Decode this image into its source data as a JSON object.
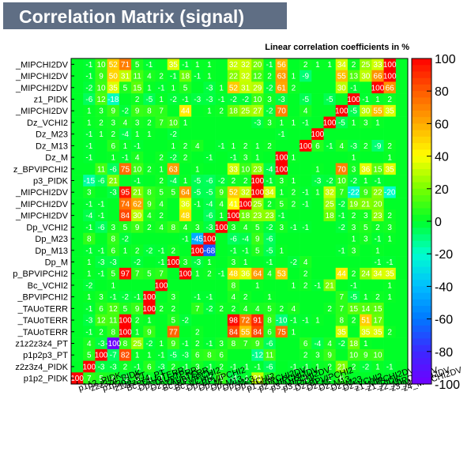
{
  "title": "Correlation Matrix (signal)",
  "chart_data": {
    "type": "heatmap",
    "title": "Linear correlation coefficients in %",
    "zlim": [
      -100,
      100
    ],
    "z_ticks": [
      100,
      80,
      60,
      40,
      20,
      0,
      -20,
      -40,
      -60,
      -80,
      -100
    ],
    "row_labels": [
      "_MIPCHI2DV",
      "_MIPCHI2DV",
      "_MIPCHI2DV",
      "z1_PIDK",
      "_MIPCHI2DV",
      "Dz_VCHI2",
      "Dz_M23",
      "Dz_M13",
      "Dz_M",
      "z_BPVIPCHI2",
      "p3_PIDK",
      "_MIPCHI2DV",
      "_MIPCHI2DV",
      "_MIPCHI2DV",
      "Dp_VCHI2",
      "Dp_M23",
      "Dp_M13",
      "Dp_M",
      "p_BPVIPCHI2",
      "Bc_VCHI2",
      "_BPVIPCHI2",
      "_TAUoTERR",
      "_TAUoTERR",
      "_TAUoTERR",
      "z1z2z3z4_PT",
      "p1p2p3_PT",
      "z2z3z4_PIDK",
      "p1p2_PIDK"
    ],
    "col_labels": [
      "p1p2_PIDK",
      "z2z3z4_PIDK",
      "p1p2p3_PT",
      "z1z2z3z4_PT",
      "Bc_TAUoTERR",
      "Dp_TAUoTERR",
      "Dz_TAUoTERR",
      "Bc_BPVIPCHI2",
      "Bc_VCHI2",
      "Dp_BPVIPCHI2",
      "Dp_M",
      "Dp_M13",
      "Dp_M23",
      "Dp_VCHI2",
      "p1_MIPCHI2DV",
      "p2_MIPCHI2DV",
      "p3_MIPCHI2DV",
      "p3_PIDK",
      "Dz_BPVIPCHI2",
      "Dz_M",
      "Dz_M13",
      "Dz_M23",
      "Dz_VCHI2",
      "z1_MIPCHI2DV",
      "z1_PIDK",
      "z2_MIPCHI2DV",
      "z3_MIPCHI2DV",
      "z4_MIPCHI2DV"
    ],
    "values": [
      [
        0,
        -1,
        10,
        52,
        71,
        5,
        -1,
        0,
        35,
        -1,
        1,
        1,
        0,
        32,
        32,
        20,
        -1,
        56,
        0,
        2,
        1,
        1,
        34,
        2,
        25,
        33,
        100,
        0
      ],
      [
        0,
        -1,
        9,
        50,
        31,
        11,
        4,
        2,
        -1,
        18,
        -1,
        1,
        0,
        22,
        32,
        12,
        2,
        63,
        1,
        -9,
        0,
        0,
        55,
        13,
        30,
        66,
        100,
        0
      ],
      [
        0,
        -2,
        10,
        35,
        5,
        15,
        1,
        -1,
        1,
        5,
        0,
        -3,
        1,
        52,
        31,
        29,
        -2,
        61,
        2,
        0,
        0,
        0,
        30,
        -1,
        0,
        100,
        66,
        0
      ],
      [
        0,
        -6,
        12,
        -18,
        0,
        2,
        -5,
        1,
        -2,
        -1,
        -3,
        -3,
        -1,
        -2,
        -2,
        10,
        3,
        -3,
        0,
        -5,
        0,
        -5,
        0,
        100,
        -1,
        1,
        2,
        0
      ],
      [
        0,
        1,
        3,
        9,
        -2,
        9,
        8,
        7,
        0,
        44,
        0,
        1,
        2,
        18,
        25,
        27,
        -2,
        70,
        0,
        4,
        0,
        0,
        100,
        -5,
        30,
        55,
        35,
        0
      ],
      [
        0,
        1,
        2,
        3,
        4,
        3,
        2,
        7,
        10,
        1,
        0,
        0,
        0,
        0,
        0,
        -3,
        3,
        1,
        1,
        -1,
        0,
        100,
        -5,
        1,
        3,
        1,
        0,
        0
      ],
      [
        0,
        -1,
        1,
        2,
        -4,
        1,
        1,
        0,
        -2,
        0,
        0,
        0,
        0,
        0,
        0,
        0,
        0,
        -1,
        0,
        0,
        100,
        0,
        0,
        0,
        0,
        0,
        0,
        0
      ],
      [
        0,
        -1,
        0,
        6,
        1,
        -1,
        0,
        0,
        1,
        2,
        4,
        0,
        -1,
        1,
        2,
        1,
        2,
        0,
        0,
        100,
        6,
        -1,
        4,
        -3,
        2,
        -9,
        2,
        0
      ],
      [
        0,
        -1,
        0,
        1,
        -1,
        4,
        0,
        2,
        -2,
        2,
        0,
        -1,
        0,
        -1,
        3,
        1,
        0,
        100,
        1,
        0,
        0,
        0,
        0,
        1,
        0,
        0,
        1,
        0
      ],
      [
        0,
        0,
        11,
        -6,
        75,
        10,
        2,
        1,
        63,
        0,
        1,
        0,
        0,
        33,
        10,
        23,
        -4,
        100,
        0,
        0,
        1,
        0,
        70,
        3,
        36,
        15,
        35,
        0
      ],
      [
        0,
        -15,
        -6,
        21,
        0,
        -1,
        0,
        2,
        -4,
        1,
        -5,
        -6,
        -2,
        2,
        2,
        100,
        -1,
        3,
        1,
        0,
        -3,
        -2,
        10,
        -2,
        1,
        -1,
        0,
        0
      ],
      [
        0,
        3,
        0,
        -3,
        95,
        21,
        8,
        5,
        5,
        64,
        -5,
        -5,
        9,
        52,
        32,
        100,
        34,
        1,
        2,
        -1,
        1,
        32,
        7,
        -22,
        9,
        22,
        -20,
        0
      ],
      [
        0,
        -1,
        -1,
        0,
        74,
        62,
        9,
        4,
        0,
        36,
        -1,
        -4,
        4,
        41,
        100,
        25,
        2,
        5,
        2,
        -1,
        0,
        25,
        -2,
        19,
        21,
        20,
        0,
        0
      ],
      [
        0,
        -4,
        -1,
        0,
        84,
        30,
        4,
        2,
        0,
        48,
        0,
        -6,
        1,
        100,
        18,
        23,
        23,
        -1,
        0,
        0,
        0,
        18,
        -1,
        2,
        3,
        23,
        2,
        0
      ],
      [
        0,
        -1,
        -6,
        3,
        5,
        9,
        2,
        4,
        8,
        4,
        3,
        -3,
        100,
        3,
        4,
        5,
        -2,
        3,
        -1,
        -1,
        0,
        0,
        -2,
        3,
        5,
        2,
        3,
        0
      ],
      [
        0,
        8,
        0,
        8,
        -2,
        0,
        0,
        0,
        0,
        -1,
        -45,
        100,
        0,
        -6,
        -4,
        9,
        -6,
        0,
        0,
        0,
        0,
        0,
        0,
        1,
        3,
        -1,
        1,
        0
      ],
      [
        0,
        -1,
        -1,
        6,
        1,
        2,
        -2,
        -1,
        2,
        0,
        100,
        -68,
        0,
        -1,
        -1,
        5,
        -5,
        1,
        0,
        0,
        0,
        0,
        -1,
        3,
        0,
        1,
        0,
        0
      ],
      [
        0,
        1,
        -3,
        -3,
        0,
        -2,
        0,
        -1,
        100,
        3,
        -3,
        1,
        0,
        3,
        1,
        0,
        -1,
        0,
        -2,
        4,
        0,
        0,
        0,
        0,
        0,
        -1,
        -1,
        0
      ],
      [
        0,
        1,
        -1,
        5,
        97,
        7,
        5,
        7,
        0,
        100,
        1,
        2,
        -1,
        48,
        36,
        64,
        4,
        53,
        0,
        2,
        0,
        0,
        44,
        2,
        24,
        34,
        35,
        0
      ],
      [
        0,
        -2,
        0,
        1,
        0,
        0,
        0,
        100,
        0,
        0,
        0,
        0,
        0,
        8,
        0,
        1,
        0,
        0,
        1,
        2,
        -1,
        21,
        0,
        -1,
        0,
        0,
        1,
        0
      ],
      [
        0,
        1,
        3,
        -1,
        -2,
        -1,
        100,
        0,
        3,
        0,
        -1,
        -1,
        0,
        4,
        2,
        0,
        1,
        0,
        0,
        0,
        0,
        0,
        7,
        -5,
        1,
        2,
        1,
        0
      ],
      [
        0,
        -1,
        6,
        12,
        5,
        9,
        100,
        2,
        2,
        0,
        7,
        -2,
        2,
        2,
        4,
        4,
        5,
        2,
        4,
        0,
        0,
        2,
        7,
        15,
        14,
        15,
        0,
        0
      ],
      [
        0,
        -3,
        12,
        11,
        100,
        2,
        1,
        0,
        5,
        -2,
        0,
        0,
        0,
        98,
        72,
        91,
        8,
        -10,
        -1,
        -1,
        1,
        0,
        8,
        2,
        51,
        17,
        0,
        0
      ],
      [
        0,
        -1,
        2,
        8,
        100,
        1,
        9,
        0,
        77,
        0,
        2,
        0,
        0,
        84,
        55,
        84,
        6,
        75,
        1,
        0,
        0,
        0,
        35,
        0,
        35,
        35,
        2,
        0
      ],
      [
        0,
        4,
        -3,
        -100,
        8,
        25,
        -2,
        1,
        9,
        -1,
        2,
        -1,
        3,
        8,
        7,
        9,
        -6,
        0,
        0,
        6,
        -4,
        4,
        -2,
        18,
        1,
        0,
        0,
        0
      ],
      [
        0,
        5,
        100,
        -7,
        82,
        1,
        1,
        -1,
        -5,
        -3,
        6,
        8,
        6,
        0,
        0,
        -12,
        11,
        0,
        0,
        2,
        3,
        9,
        0,
        10,
        9,
        10,
        0,
        0
      ],
      [
        0,
        100,
        -3,
        -3,
        2,
        -1,
        6,
        -3,
        2,
        -1,
        3,
        -1,
        2,
        -1,
        -1,
        -1,
        -6,
        0,
        -1,
        -1,
        1,
        2,
        21,
        2,
        -2,
        1,
        -1,
        0
      ],
      [
        100,
        7,
        5,
        4,
        -1,
        3,
        1,
        1,
        0,
        1,
        0,
        -1,
        8,
        -4,
        -1,
        31,
        5,
        0,
        0,
        1,
        0,
        1,
        6,
        0,
        0,
        0,
        0,
        0
      ]
    ]
  }
}
